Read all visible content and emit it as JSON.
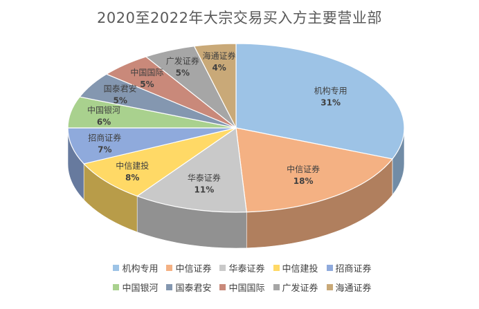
{
  "chart_data": {
    "type": "pie",
    "title": "2020至2022年大宗交易买入方主要营业部",
    "categories": [
      "机构专用",
      "中信证券",
      "华泰证券",
      "中信建投",
      "招商证券",
      "中国银河",
      "国泰君安",
      "中国国际",
      "广发证券",
      "海通证券"
    ],
    "values": [
      31,
      18,
      11,
      8,
      7,
      6,
      5,
      5,
      5,
      4
    ],
    "value_labels": [
      "31%",
      "18%",
      "11%",
      "8%",
      "7%",
      "6%",
      "5%",
      "5%",
      "5%",
      "4%"
    ],
    "colors": [
      "#9DC3E6",
      "#F4B183",
      "#C9C9C9",
      "#FFD966",
      "#8FAADC",
      "#A9D18E",
      "#8497B0",
      "#C9897A",
      "#A6A6A6",
      "#C9A978"
    ],
    "legend_placement": "bottom",
    "style": "3d"
  }
}
